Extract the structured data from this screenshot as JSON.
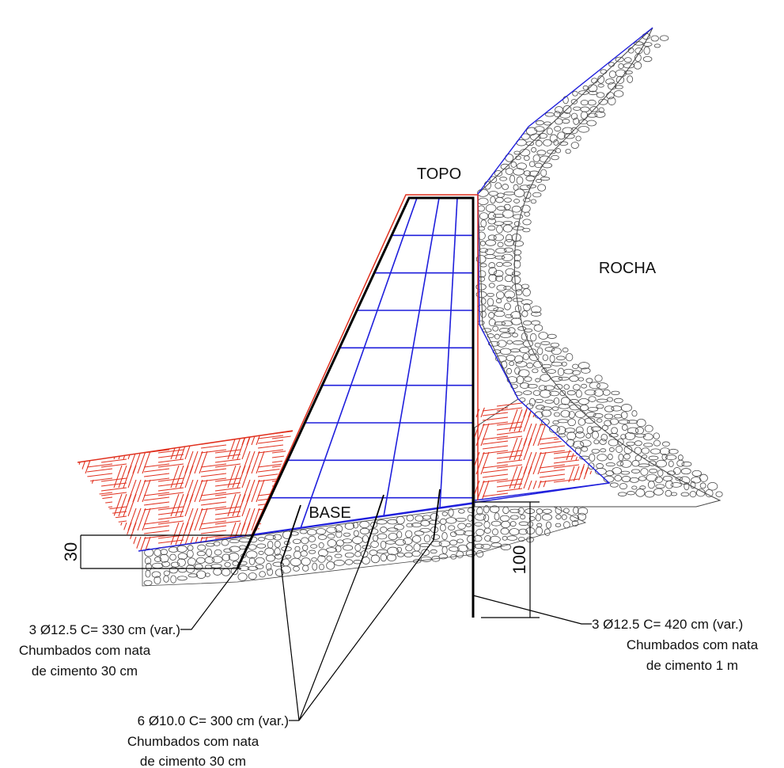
{
  "labels": {
    "topo": "TOPO",
    "rocha": "ROCHA",
    "base": "BASE"
  },
  "dimensions": {
    "left": "30",
    "right": "100"
  },
  "notes": {
    "left": {
      "line1": "3 Ø12.5 C= 330 cm (var.)",
      "line2": "Chumbados com nata",
      "line3": "de cimento 30 cm"
    },
    "right": {
      "line1": "3 Ø12.5 C= 420 cm (var.)",
      "line2": "Chumbados com nata",
      "line3": "de cimento 1 m"
    },
    "bottom": {
      "line1": "6 Ø10.0 C= 300 cm (var.)",
      "line2": "Chumbados com nata",
      "line3": "de cimento 30 cm"
    }
  },
  "colors": {
    "concrete_outline": "#000000",
    "reinforcement_mesh": "#1f1fdc",
    "soil_hatch": "#e0301e",
    "rock_texture": "#4a4a4a"
  }
}
